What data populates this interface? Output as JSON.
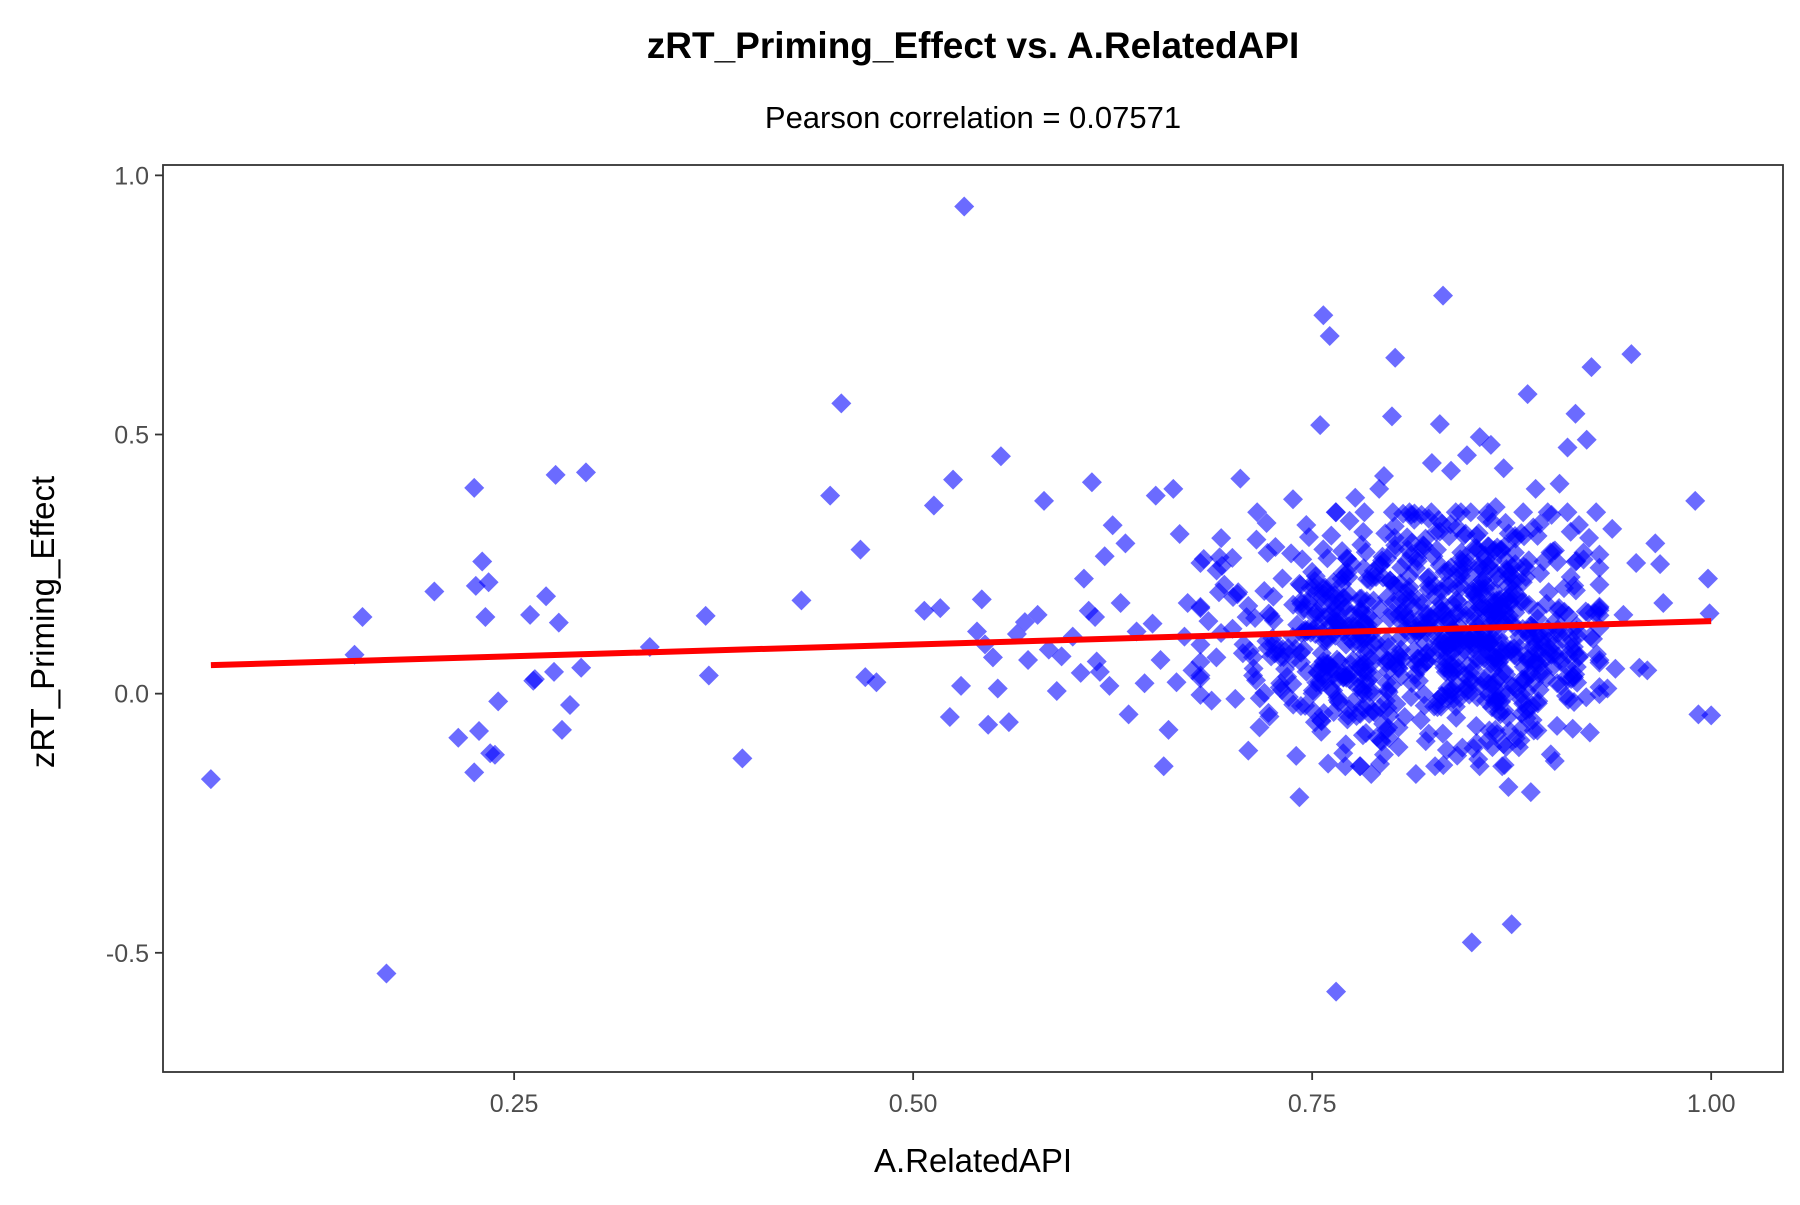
{
  "chart_data": {
    "type": "scatter",
    "title": "zRT_Priming_Effect vs. A.RelatedAPI",
    "subtitle": "Pearson correlation = 0.07571",
    "xlabel": "A.RelatedAPI",
    "ylabel": "zRT_Priming_Effect",
    "xlim": [
      0.03,
      1.045
    ],
    "ylim": [
      -0.73,
      1.02
    ],
    "x_ticks": [
      {
        "value": 0.25,
        "label": "0.25"
      },
      {
        "value": 0.5,
        "label": "0.50"
      },
      {
        "value": 0.75,
        "label": "0.75"
      },
      {
        "value": 1.0,
        "label": "1.00"
      }
    ],
    "y_ticks": [
      {
        "value": -0.5,
        "label": "-0.5"
      },
      {
        "value": 0.0,
        "label": "0.0"
      },
      {
        "value": 0.5,
        "label": "0.5"
      },
      {
        "value": 1.0,
        "label": "1.0"
      }
    ],
    "grid": false,
    "marker": "diamond",
    "colors": {
      "points": "#0000ff",
      "line": "#ff0000",
      "axis": "#333333"
    },
    "regression_line": {
      "x": [
        0.06,
        1.0
      ],
      "y": [
        0.055,
        0.14
      ]
    },
    "points": [
      [
        0.06,
        -0.165
      ],
      [
        0.15,
        0.075
      ],
      [
        0.155,
        0.148
      ],
      [
        0.17,
        -0.54
      ],
      [
        0.2,
        0.197
      ],
      [
        0.215,
        -0.085
      ],
      [
        0.225,
        0.397
      ],
      [
        0.225,
        -0.152
      ],
      [
        0.226,
        0.208
      ],
      [
        0.228,
        -0.072
      ],
      [
        0.23,
        0.255
      ],
      [
        0.232,
        0.148
      ],
      [
        0.234,
        0.215
      ],
      [
        0.235,
        -0.115
      ],
      [
        0.238,
        -0.118
      ],
      [
        0.24,
        -0.015
      ],
      [
        0.26,
        0.152
      ],
      [
        0.262,
        0.025
      ],
      [
        0.263,
        0.028
      ],
      [
        0.27,
        0.188
      ],
      [
        0.275,
        0.042
      ],
      [
        0.276,
        0.422
      ],
      [
        0.278,
        0.137
      ],
      [
        0.28,
        -0.07
      ],
      [
        0.285,
        -0.022
      ],
      [
        0.292,
        0.05
      ],
      [
        0.295,
        0.427
      ],
      [
        0.335,
        0.09
      ],
      [
        0.37,
        0.15
      ],
      [
        0.372,
        0.035
      ],
      [
        0.393,
        -0.125
      ],
      [
        0.43,
        0.18
      ],
      [
        0.448,
        0.382
      ],
      [
        0.455,
        0.56
      ],
      [
        0.467,
        0.278
      ],
      [
        0.47,
        0.032
      ],
      [
        0.477,
        0.022
      ],
      [
        0.507,
        0.16
      ],
      [
        0.513,
        0.363
      ],
      [
        0.517,
        0.165
      ],
      [
        0.523,
        -0.045
      ],
      [
        0.525,
        0.413
      ],
      [
        0.53,
        0.015
      ],
      [
        0.532,
        0.94
      ],
      [
        0.54,
        0.12
      ],
      [
        0.543,
        0.182
      ],
      [
        0.545,
        0.095
      ],
      [
        0.547,
        -0.06
      ],
      [
        0.55,
        0.07
      ],
      [
        0.553,
        0.01
      ],
      [
        0.555,
        0.458
      ],
      [
        0.56,
        -0.055
      ],
      [
        0.565,
        0.115
      ],
      [
        0.57,
        0.138
      ],
      [
        0.572,
        0.065
      ],
      [
        0.578,
        0.152
      ],
      [
        0.582,
        0.372
      ],
      [
        0.585,
        0.085
      ],
      [
        0.59,
        0.005
      ],
      [
        0.593,
        0.072
      ],
      [
        0.6,
        0.11
      ],
      [
        0.605,
        0.04
      ],
      [
        0.607,
        0.222
      ],
      [
        0.61,
        0.16
      ],
      [
        0.612,
        0.408
      ],
      [
        0.614,
        0.148
      ],
      [
        0.615,
        0.062
      ],
      [
        0.617,
        0.042
      ],
      [
        0.62,
        0.265
      ],
      [
        0.623,
        0.015
      ],
      [
        0.625,
        0.325
      ],
      [
        0.63,
        0.175
      ],
      [
        0.633,
        0.29
      ],
      [
        0.635,
        -0.04
      ],
      [
        0.64,
        0.12
      ],
      [
        0.645,
        0.02
      ],
      [
        0.65,
        0.135
      ],
      [
        0.652,
        0.382
      ],
      [
        0.655,
        0.065
      ],
      [
        0.657,
        -0.14
      ],
      [
        0.66,
        -0.07
      ],
      [
        0.663,
        0.395
      ],
      [
        0.665,
        0.022
      ],
      [
        0.667,
        0.308
      ],
      [
        0.67,
        0.11
      ],
      [
        0.672,
        0.175
      ],
      [
        0.675,
        0.045
      ],
      [
        0.68,
        0.252
      ],
      [
        0.685,
        0.14
      ],
      [
        0.69,
        0.07
      ],
      [
        0.693,
        0.3
      ],
      [
        0.695,
        0.21
      ],
      [
        0.7,
        0.262
      ],
      [
        0.705,
        0.415
      ],
      [
        0.707,
        0.095
      ],
      [
        0.71,
        -0.11
      ],
      [
        0.713,
        0.035
      ],
      [
        0.717,
        -0.065
      ],
      [
        0.72,
        0.198
      ],
      [
        0.724,
        0.15
      ],
      [
        0.727,
        0.283
      ],
      [
        0.73,
        0.02
      ],
      [
        0.735,
        0.088
      ],
      [
        0.738,
        0.375
      ],
      [
        0.74,
        -0.12
      ],
      [
        0.742,
        -0.2
      ],
      [
        0.745,
        0.165
      ],
      [
        0.748,
        0.302
      ],
      [
        0.75,
        0.235
      ],
      [
        0.752,
        0.115
      ],
      [
        0.755,
        0.518
      ],
      [
        0.757,
        0.73
      ],
      [
        0.758,
        0.205
      ],
      [
        0.76,
        -0.135
      ],
      [
        0.761,
        0.69
      ],
      [
        0.762,
        0.305
      ],
      [
        0.765,
        -0.575
      ],
      [
        0.767,
        0.062
      ],
      [
        0.77,
        0.185
      ],
      [
        0.773,
        -0.03
      ],
      [
        0.775,
        0.25
      ],
      [
        0.777,
        0.378
      ],
      [
        0.78,
        0.095
      ],
      [
        0.782,
        0.312
      ],
      [
        0.785,
        0.15
      ],
      [
        0.787,
        -0.155
      ],
      [
        0.79,
        0.225
      ],
      [
        0.792,
        0.395
      ],
      [
        0.795,
        0.42
      ],
      [
        0.797,
        0.065
      ],
      [
        0.8,
        0.535
      ],
      [
        0.802,
        0.648
      ],
      [
        0.805,
        0.182
      ],
      [
        0.808,
        -0.045
      ],
      [
        0.81,
        0.278
      ],
      [
        0.812,
        0.345
      ],
      [
        0.815,
        -0.155
      ],
      [
        0.818,
        0.125
      ],
      [
        0.82,
        0.285
      ],
      [
        0.822,
        0.062
      ],
      [
        0.825,
        0.445
      ],
      [
        0.827,
        -0.14
      ],
      [
        0.83,
        0.52
      ],
      [
        0.832,
        0.768
      ],
      [
        0.833,
        0.208
      ],
      [
        0.835,
        0.092
      ],
      [
        0.837,
        0.43
      ],
      [
        0.84,
        -0.025
      ],
      [
        0.842,
        0.155
      ],
      [
        0.845,
        0.305
      ],
      [
        0.847,
        0.46
      ],
      [
        0.85,
        -0.48
      ],
      [
        0.852,
        0.105
      ],
      [
        0.855,
        0.495
      ],
      [
        0.857,
        0.24
      ],
      [
        0.86,
        -0.09
      ],
      [
        0.862,
        0.48
      ],
      [
        0.864,
        0.175
      ],
      [
        0.865,
        0.36
      ],
      [
        0.867,
        -0.035
      ],
      [
        0.87,
        0.435
      ],
      [
        0.872,
        0.142
      ],
      [
        0.873,
        -0.18
      ],
      [
        0.875,
        -0.445
      ],
      [
        0.877,
        0.272
      ],
      [
        0.88,
        0.088
      ],
      [
        0.882,
        0.215
      ],
      [
        0.885,
        0.578
      ],
      [
        0.887,
        -0.19
      ],
      [
        0.89,
        0.395
      ],
      [
        0.892,
        0.115
      ],
      [
        0.895,
        0.255
      ],
      [
        0.897,
        0.03
      ],
      [
        0.9,
        0.345
      ],
      [
        0.902,
        -0.13
      ],
      [
        0.905,
        0.405
      ],
      [
        0.908,
        0.158
      ],
      [
        0.91,
        0.475
      ],
      [
        0.912,
        0.225
      ],
      [
        0.915,
        0.54
      ],
      [
        0.917,
        0.07
      ],
      [
        0.92,
        0.272
      ],
      [
        0.922,
        0.49
      ],
      [
        0.924,
        -0.075
      ],
      [
        0.925,
        0.63
      ],
      [
        0.93,
        0.165
      ],
      [
        0.935,
        0.01
      ],
      [
        0.938,
        0.318
      ],
      [
        0.94,
        0.048
      ],
      [
        0.945,
        0.152
      ],
      [
        0.95,
        0.655
      ],
      [
        0.953,
        0.252
      ],
      [
        0.955,
        0.05
      ],
      [
        0.96,
        0.045
      ],
      [
        0.965,
        0.29
      ],
      [
        0.968,
        0.25
      ],
      [
        0.97,
        0.175
      ],
      [
        0.99,
        0.372
      ],
      [
        0.992,
        -0.04
      ],
      [
        0.998,
        0.222
      ],
      [
        0.999,
        0.155
      ],
      [
        1.0,
        -0.042
      ]
    ],
    "dense_cluster": [
      {
        "cx": 0.765,
        "cy": 0.115,
        "sx": 0.018,
        "sy": 0.11,
        "n": 160
      },
      {
        "cx": 0.815,
        "cy": 0.12,
        "sx": 0.03,
        "sy": 0.12,
        "n": 220
      },
      {
        "cx": 0.86,
        "cy": 0.12,
        "sx": 0.025,
        "sy": 0.12,
        "n": 260
      },
      {
        "cx": 0.9,
        "cy": 0.13,
        "sx": 0.02,
        "sy": 0.11,
        "n": 120
      },
      {
        "cx": 0.72,
        "cy": 0.12,
        "sx": 0.03,
        "sy": 0.1,
        "n": 60
      }
    ]
  }
}
